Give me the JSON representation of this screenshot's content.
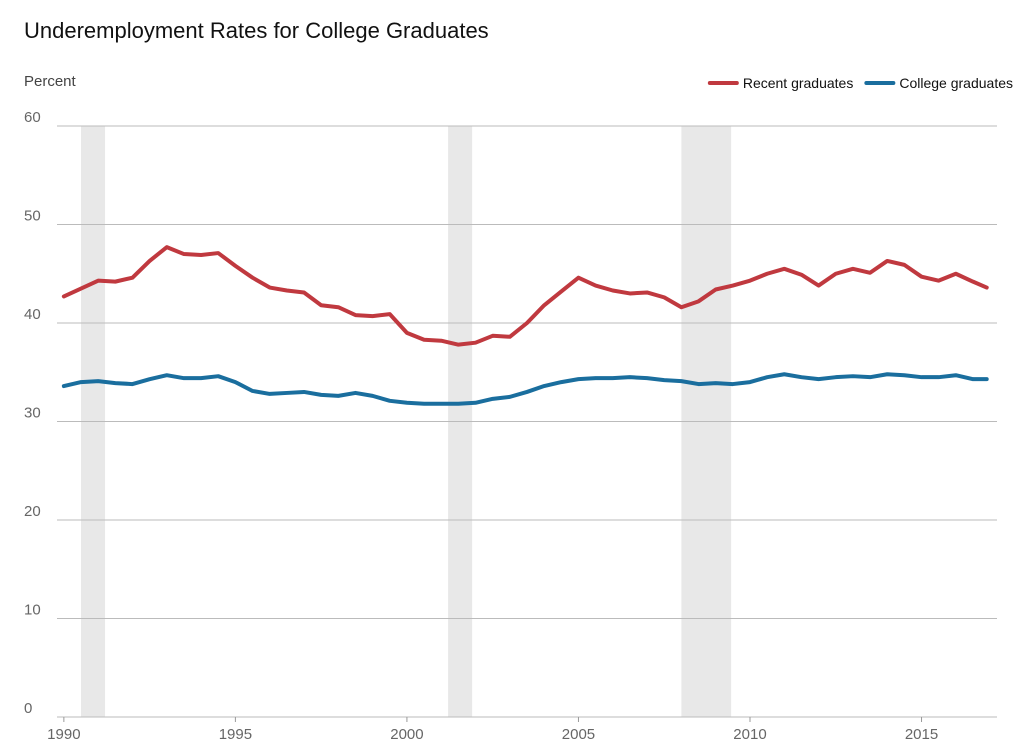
{
  "chart_data": {
    "type": "line",
    "title": "Underemployment Rates for College Graduates",
    "y_label": "Percent",
    "x": [
      1990,
      1990.5,
      1991,
      1991.5,
      1992,
      1992.5,
      1993,
      1993.5,
      1994,
      1994.5,
      1995,
      1995.5,
      1996,
      1996.5,
      1997,
      1997.5,
      1998,
      1998.5,
      1999,
      1999.5,
      2000,
      2000.5,
      2001,
      2001.5,
      2002,
      2002.5,
      2003,
      2003.5,
      2004,
      2004.5,
      2005,
      2005.5,
      2006,
      2006.5,
      2007,
      2007.5,
      2008,
      2008.5,
      2009,
      2009.5,
      2010,
      2010.5,
      2011,
      2011.5,
      2012,
      2012.5,
      2013,
      2013.5,
      2014,
      2014.5,
      2015,
      2015.5,
      2016,
      2016.5,
      2016.9
    ],
    "series": [
      {
        "name": "Recent graduates",
        "color": "#c0393f",
        "values": [
          42.7,
          43.5,
          44.3,
          44.2,
          44.6,
          46.3,
          47.7,
          47.0,
          46.9,
          47.1,
          45.8,
          44.6,
          43.6,
          43.3,
          43.1,
          41.8,
          41.6,
          40.8,
          40.7,
          40.9,
          39.0,
          38.3,
          38.2,
          37.8,
          38.0,
          38.7,
          38.6,
          40.0,
          41.8,
          43.2,
          44.6,
          43.8,
          43.3,
          43.0,
          43.1,
          42.6,
          41.6,
          42.2,
          43.4,
          43.8,
          44.3,
          45.0,
          45.5,
          44.9,
          43.8,
          45.0,
          45.5,
          45.1,
          46.3,
          45.9,
          44.7,
          44.3,
          45.0,
          44.2,
          43.6
        ]
      },
      {
        "name": "College graduates",
        "color": "#1a6e9e",
        "values": [
          33.6,
          34.0,
          34.1,
          33.9,
          33.8,
          34.3,
          34.7,
          34.4,
          34.4,
          34.6,
          34.0,
          33.1,
          32.8,
          32.9,
          33.0,
          32.7,
          32.6,
          32.9,
          32.6,
          32.1,
          31.9,
          31.8,
          31.8,
          31.8,
          31.9,
          32.3,
          32.5,
          33.0,
          33.6,
          34.0,
          34.3,
          34.4,
          34.4,
          34.5,
          34.4,
          34.2,
          34.1,
          33.8,
          33.9,
          33.8,
          34.0,
          34.5,
          34.8,
          34.5,
          34.3,
          34.5,
          34.6,
          34.5,
          34.8,
          34.7,
          34.5,
          34.5,
          34.7,
          34.3,
          34.3
        ]
      }
    ],
    "shaded_periods": [
      [
        1990.5,
        1991.2
      ],
      [
        2001.2,
        2001.9
      ],
      [
        2008.0,
        2009.45
      ]
    ],
    "shade_color": "#e8e8e8",
    "xlim": [
      1989.8,
      2017.2
    ],
    "xticks": [
      1990,
      1995,
      2000,
      2005,
      2010,
      2015
    ],
    "ylim": [
      0,
      60
    ],
    "yticks": [
      0,
      10,
      20,
      30,
      40,
      50,
      60
    ],
    "grid": true,
    "legend": "top-right"
  }
}
